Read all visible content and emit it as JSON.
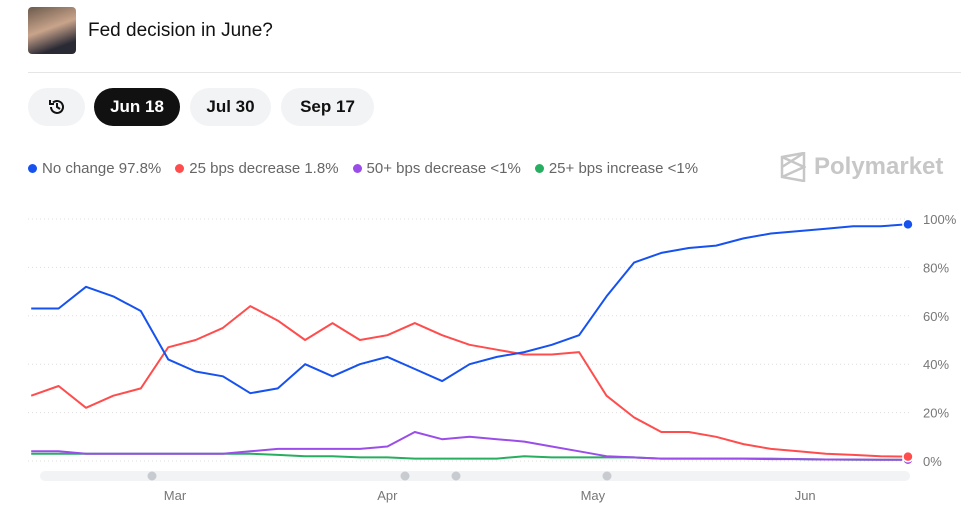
{
  "header": {
    "title": "Fed decision in June?"
  },
  "tabs": [
    {
      "label": "history",
      "icon": "history-icon"
    },
    {
      "label": "Jun 18",
      "active": true
    },
    {
      "label": "Jul 30"
    },
    {
      "label": "Sep 17"
    }
  ],
  "legend": [
    {
      "label": "No change 97.8%",
      "color": "#1652f0"
    },
    {
      "label": "25 bps decrease 1.8%",
      "color": "#ff4d4d"
    },
    {
      "label": "50+ bps decrease <1%",
      "color": "#9b4dea"
    },
    {
      "label": "25+ bps increase <1%",
      "color": "#27ae60"
    }
  ],
  "brand": "Polymarket",
  "chart_data": {
    "type": "line",
    "ylim": [
      0,
      100
    ],
    "yticks": [
      "0%",
      "20%",
      "40%",
      "60%",
      "80%",
      "100%"
    ],
    "xticks": [
      {
        "date": "Mar 1",
        "label": "Mar"
      },
      {
        "date": "Apr 1",
        "label": "Apr"
      },
      {
        "date": "May 1",
        "label": "May"
      },
      {
        "date": "Jun 1",
        "label": "Jun"
      }
    ],
    "grid": true,
    "legend_position": "top-left",
    "x": [
      "Feb 8",
      "Feb 12",
      "Feb 16",
      "Feb 20",
      "Feb 24",
      "Feb 28",
      "Mar 4",
      "Mar 8",
      "Mar 12",
      "Mar 16",
      "Mar 20",
      "Mar 24",
      "Mar 28",
      "Apr 1",
      "Apr 5",
      "Apr 9",
      "Apr 13",
      "Apr 17",
      "Apr 21",
      "Apr 25",
      "Apr 29",
      "May 3",
      "May 7",
      "May 11",
      "May 15",
      "May 19",
      "May 23",
      "May 27",
      "May 31",
      "Jun 4",
      "Jun 8",
      "Jun 12",
      "Jun 16"
    ],
    "series": [
      {
        "name": "No change",
        "color": "#1652f0",
        "values": [
          63,
          63,
          72,
          68,
          62,
          42,
          37,
          35,
          28,
          30,
          40,
          35,
          40,
          43,
          38,
          33,
          40,
          43,
          45,
          48,
          52,
          68,
          82,
          86,
          88,
          89,
          92,
          94,
          95,
          96,
          97,
          97,
          97.8
        ]
      },
      {
        "name": "25 bps decrease",
        "color": "#ff4d4d",
        "values": [
          27,
          31,
          22,
          27,
          30,
          47,
          50,
          55,
          64,
          58,
          50,
          57,
          50,
          52,
          57,
          52,
          48,
          46,
          44,
          44,
          45,
          27,
          18,
          12,
          12,
          10,
          7,
          5,
          4,
          3,
          2.5,
          2,
          1.8
        ]
      },
      {
        "name": "50+ bps decrease",
        "color": "#9b4dea",
        "values": [
          4,
          4,
          3,
          3,
          3,
          3,
          3,
          3,
          4,
          5,
          5,
          5,
          5,
          6,
          12,
          9,
          10,
          9,
          8,
          6,
          4,
          2,
          1.5,
          1,
          1,
          1,
          1,
          0.8,
          0.8,
          0.6,
          0.6,
          0.5,
          0.5
        ]
      },
      {
        "name": "25+ bps increase",
        "color": "#27ae60",
        "values": [
          3,
          3,
          3,
          3,
          3,
          3,
          3,
          3,
          3,
          2.5,
          2,
          2,
          1.5,
          1.5,
          1,
          1,
          1,
          1,
          2,
          1.5,
          1.5,
          1.5,
          1.5,
          1,
          1,
          1,
          1,
          1,
          0.8,
          0.6,
          0.5,
          0.5,
          0.5
        ]
      }
    ]
  }
}
